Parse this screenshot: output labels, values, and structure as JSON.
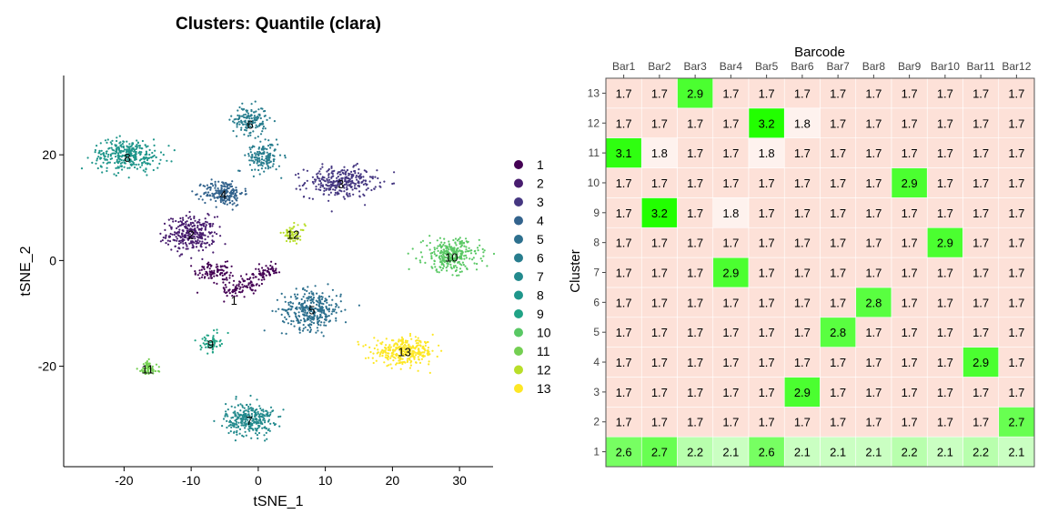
{
  "chart_data": [
    {
      "type": "scatter",
      "title": "Clusters: Quantile (clara)",
      "xlabel": "tSNE_1",
      "ylabel": "tSNE_2",
      "xlim": [
        -29,
        35
      ],
      "ylim": [
        -39,
        35
      ],
      "xticks": [
        -20,
        -10,
        0,
        10,
        20,
        30
      ],
      "yticks": [
        -20,
        0,
        20
      ],
      "xtick_labels": [
        "-20",
        "-10",
        "0",
        "10",
        "20",
        "30"
      ],
      "ytick_labels": [
        "-20",
        "0",
        "20"
      ],
      "grid": false,
      "legend_position": "right",
      "colors": [
        "#440154",
        "#481a6c",
        "#472f7d",
        "#414487",
        "#39568c",
        "#31688e",
        "#2a788e",
        "#23888e",
        "#1f988b",
        "#22a884",
        "#35b779",
        "#54c568",
        "#7ad151",
        "#a5db36",
        "#d2e21b",
        "#fde725"
      ],
      "clusters": [
        {
          "name": "1",
          "label": "1",
          "color": "#440154",
          "label_xy": [
            -3.6,
            -7.5
          ],
          "centers": [
            [
              -3.5,
              -5.5
            ],
            [
              -5.5,
              -2.5
            ],
            [
              -1.2,
              -4.0
            ],
            [
              1.5,
              -2.0
            ],
            [
              -7.5,
              -2.0
            ]
          ],
          "spread": [
            2.4,
            2.3
          ],
          "n": 240
        },
        {
          "name": "2",
          "label": "2",
          "color": "#481d6f",
          "label_xy": [
            -10.0,
            5.0
          ],
          "centers": [
            [
              -10.0,
              5.0
            ]
          ],
          "spread": [
            3.3,
            3.0
          ],
          "n": 300
        },
        {
          "name": "3",
          "label": "3",
          "color": "#453781",
          "label_xy": [
            12.3,
            14.5
          ],
          "centers": [
            [
              12.3,
              14.8
            ]
          ],
          "spread": [
            4.8,
            2.6
          ],
          "n": 300
        },
        {
          "name": "4",
          "label": "4",
          "color": "#33638d",
          "label_xy": [
            -5.2,
            12.5
          ],
          "centers": [
            [
              -5.2,
              12.8
            ]
          ],
          "spread": [
            2.7,
            2.2
          ],
          "n": 200
        },
        {
          "name": "5",
          "label": "5",
          "color": "#2d708e",
          "label_xy": [
            8.0,
            -9.3
          ],
          "centers": [
            [
              8.0,
              -9.3
            ]
          ],
          "spread": [
            4.0,
            3.4
          ],
          "n": 330
        },
        {
          "name": "6",
          "label": "6",
          "color": "#287d8e",
          "label_xy": [
            -1.2,
            25.8
          ],
          "centers": [
            [
              -1.2,
              26.5
            ],
            [
              0.8,
              19.5
            ]
          ],
          "spread": [
            3.0,
            3.2
          ],
          "n": 300
        },
        {
          "name": "7",
          "label": "7",
          "color": "#238a8d",
          "label_xy": [
            -1.3,
            -30.2
          ],
          "centers": [
            [
              -1.3,
              -30.0
            ]
          ],
          "spread": [
            3.2,
            2.8
          ],
          "n": 300
        },
        {
          "name": "8",
          "label": "8",
          "color": "#1f968b",
          "label_xy": [
            -19.5,
            19.5
          ],
          "centers": [
            [
              -19.5,
              20.0
            ]
          ],
          "spread": [
            4.6,
            2.7
          ],
          "n": 320
        },
        {
          "name": "9",
          "label": "9",
          "color": "#20a386",
          "label_xy": [
            -7.1,
            -15.8
          ],
          "centers": [
            [
              -7.1,
              -15.5
            ]
          ],
          "spread": [
            1.3,
            1.5
          ],
          "n": 60
        },
        {
          "name": "10",
          "label": "10",
          "color": "#59c864",
          "label_xy": [
            28.8,
            0.7
          ],
          "centers": [
            [
              28.8,
              1.0
            ]
          ],
          "spread": [
            3.8,
            2.8
          ],
          "n": 300
        },
        {
          "name": "11",
          "label": "11",
          "color": "#74cf52",
          "label_xy": [
            -16.5,
            -20.5
          ],
          "centers": [
            [
              -16.5,
              -20.5
            ]
          ],
          "spread": [
            1.3,
            1.3
          ],
          "n": 70
        },
        {
          "name": "12",
          "label": "12",
          "color": "#b8de29",
          "label_xy": [
            5.2,
            5.0
          ],
          "centers": [
            [
              5.2,
              5.0
            ]
          ],
          "spread": [
            1.6,
            1.5
          ],
          "n": 60
        },
        {
          "name": "13",
          "label": "13",
          "color": "#fde725",
          "label_xy": [
            21.8,
            -17.2
          ],
          "centers": [
            [
              21.8,
              -17.3
            ]
          ],
          "spread": [
            4.2,
            2.1
          ],
          "n": 330
        }
      ]
    },
    {
      "type": "heatmap",
      "xlabel": "Barcode",
      "ylabel": "Cluster",
      "x_categories": [
        "Bar1",
        "Bar2",
        "Bar3",
        "Bar4",
        "Bar5",
        "Bar6",
        "Bar7",
        "Bar8",
        "Bar9",
        "Bar10",
        "Bar11",
        "Bar12"
      ],
      "y_categories": [
        "1",
        "2",
        "3",
        "4",
        "5",
        "6",
        "7",
        "8",
        "9",
        "10",
        "11",
        "12",
        "13"
      ],
      "values": [
        [
          "2.6",
          "2.7",
          "2.2",
          "2.1",
          "2.6",
          "2.1",
          "2.1",
          "2.1",
          "2.2",
          "2.1",
          "2.2",
          "2.1"
        ],
        [
          "1.7",
          "1.7",
          "1.7",
          "1.7",
          "1.7",
          "1.7",
          "1.7",
          "1.7",
          "1.7",
          "1.7",
          "1.7",
          "2.7"
        ],
        [
          "1.7",
          "1.7",
          "1.7",
          "1.7",
          "1.7",
          "2.9",
          "1.7",
          "1.7",
          "1.7",
          "1.7",
          "1.7",
          "1.7"
        ],
        [
          "1.7",
          "1.7",
          "1.7",
          "1.7",
          "1.7",
          "1.7",
          "1.7",
          "1.7",
          "1.7",
          "1.7",
          "2.9",
          "1.7"
        ],
        [
          "1.7",
          "1.7",
          "1.7",
          "1.7",
          "1.7",
          "1.7",
          "2.8",
          "1.7",
          "1.7",
          "1.7",
          "1.7",
          "1.7"
        ],
        [
          "1.7",
          "1.7",
          "1.7",
          "1.7",
          "1.7",
          "1.7",
          "1.7",
          "2.8",
          "1.7",
          "1.7",
          "1.7",
          "1.7"
        ],
        [
          "1.7",
          "1.7",
          "1.7",
          "2.9",
          "1.7",
          "1.7",
          "1.7",
          "1.7",
          "1.7",
          "1.7",
          "1.7",
          "1.7"
        ],
        [
          "1.7",
          "1.7",
          "1.7",
          "1.7",
          "1.7",
          "1.7",
          "1.7",
          "1.7",
          "1.7",
          "2.9",
          "1.7",
          "1.7"
        ],
        [
          "1.7",
          "3.2",
          "1.7",
          "1.8",
          "1.7",
          "1.7",
          "1.7",
          "1.7",
          "1.7",
          "1.7",
          "1.7",
          "1.7"
        ],
        [
          "1.7",
          "1.7",
          "1.7",
          "1.7",
          "1.7",
          "1.7",
          "1.7",
          "1.7",
          "2.9",
          "1.7",
          "1.7",
          "1.7"
        ],
        [
          "3.1",
          "1.8",
          "1.7",
          "1.7",
          "1.8",
          "1.7",
          "1.7",
          "1.7",
          "1.7",
          "1.7",
          "1.7",
          "1.7"
        ],
        [
          "1.7",
          "1.7",
          "1.7",
          "1.7",
          "3.2",
          "1.8",
          "1.7",
          "1.7",
          "1.7",
          "1.7",
          "1.7",
          "1.7"
        ],
        [
          "1.7",
          "1.7",
          "2.9",
          "1.7",
          "1.7",
          "1.7",
          "1.7",
          "1.7",
          "1.7",
          "1.7",
          "1.7",
          "1.7"
        ]
      ],
      "colors": {
        "low": "#fde1d8",
        "mid": "#ffffff",
        "high": "#22ff00"
      }
    }
  ]
}
